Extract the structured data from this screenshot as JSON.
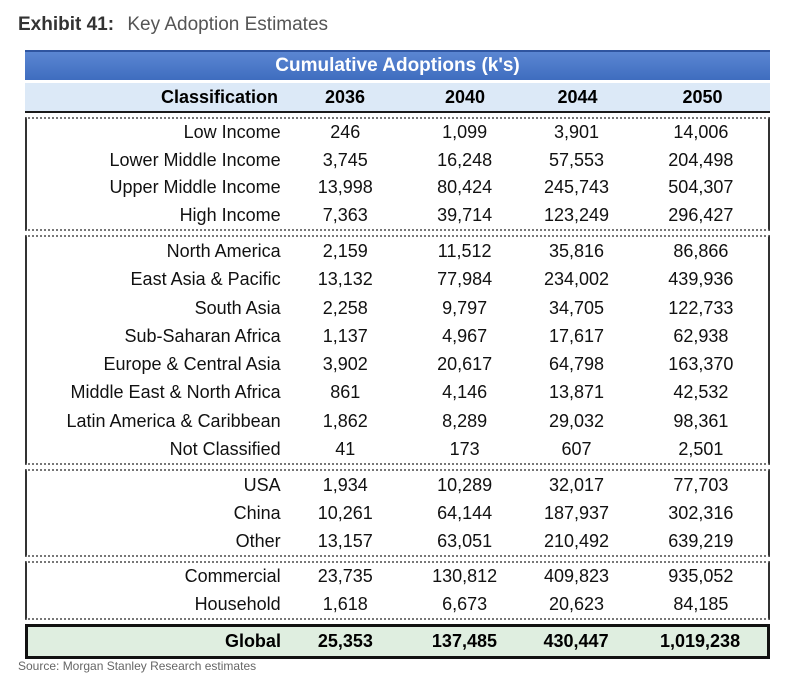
{
  "exhibit": {
    "number": "Exhibit 41:",
    "title": "Key Adoption Estimates"
  },
  "table": {
    "banner": "Cumulative Adoptions (k's)",
    "header": {
      "label": "Classification",
      "years": [
        "2036",
        "2040",
        "2044",
        "2050"
      ]
    },
    "groups": [
      [
        {
          "label": "Low Income",
          "values": [
            "246",
            "1,099",
            "3,901",
            "14,006"
          ]
        },
        {
          "label": "Lower Middle Income",
          "values": [
            "3,745",
            "16,248",
            "57,553",
            "204,498"
          ]
        },
        {
          "label": "Upper Middle Income",
          "values": [
            "13,998",
            "80,424",
            "245,743",
            "504,307"
          ]
        },
        {
          "label": "High Income",
          "values": [
            "7,363",
            "39,714",
            "123,249",
            "296,427"
          ]
        }
      ],
      [
        {
          "label": "North America",
          "values": [
            "2,159",
            "11,512",
            "35,816",
            "86,866"
          ]
        },
        {
          "label": "East Asia & Pacific",
          "values": [
            "13,132",
            "77,984",
            "234,002",
            "439,936"
          ]
        },
        {
          "label": "South Asia",
          "values": [
            "2,258",
            "9,797",
            "34,705",
            "122,733"
          ]
        },
        {
          "label": "Sub-Saharan Africa",
          "values": [
            "1,137",
            "4,967",
            "17,617",
            "62,938"
          ]
        },
        {
          "label": "Europe & Central Asia",
          "values": [
            "3,902",
            "20,617",
            "64,798",
            "163,370"
          ]
        },
        {
          "label": "Middle East & North Africa",
          "values": [
            "861",
            "4,146",
            "13,871",
            "42,532"
          ]
        },
        {
          "label": "Latin America & Caribbean",
          "values": [
            "1,862",
            "8,289",
            "29,032",
            "98,361"
          ]
        },
        {
          "label": "Not Classified",
          "values": [
            "41",
            "173",
            "607",
            "2,501"
          ]
        }
      ],
      [
        {
          "label": "USA",
          "values": [
            "1,934",
            "10,289",
            "32,017",
            "77,703"
          ]
        },
        {
          "label": "China",
          "values": [
            "10,261",
            "64,144",
            "187,937",
            "302,316"
          ]
        },
        {
          "label": "Other",
          "values": [
            "13,157",
            "63,051",
            "210,492",
            "639,219"
          ]
        }
      ],
      [
        {
          "label": "Commercial",
          "values": [
            "23,735",
            "130,812",
            "409,823",
            "935,052"
          ]
        },
        {
          "label": "Household",
          "values": [
            "1,618",
            "6,673",
            "20,623",
            "84,185"
          ]
        }
      ]
    ],
    "global": {
      "label": "Global",
      "values": [
        "25,353",
        "137,485",
        "430,447",
        "1,019,238"
      ]
    }
  },
  "source": "Source: Morgan Stanley Research estimates"
}
